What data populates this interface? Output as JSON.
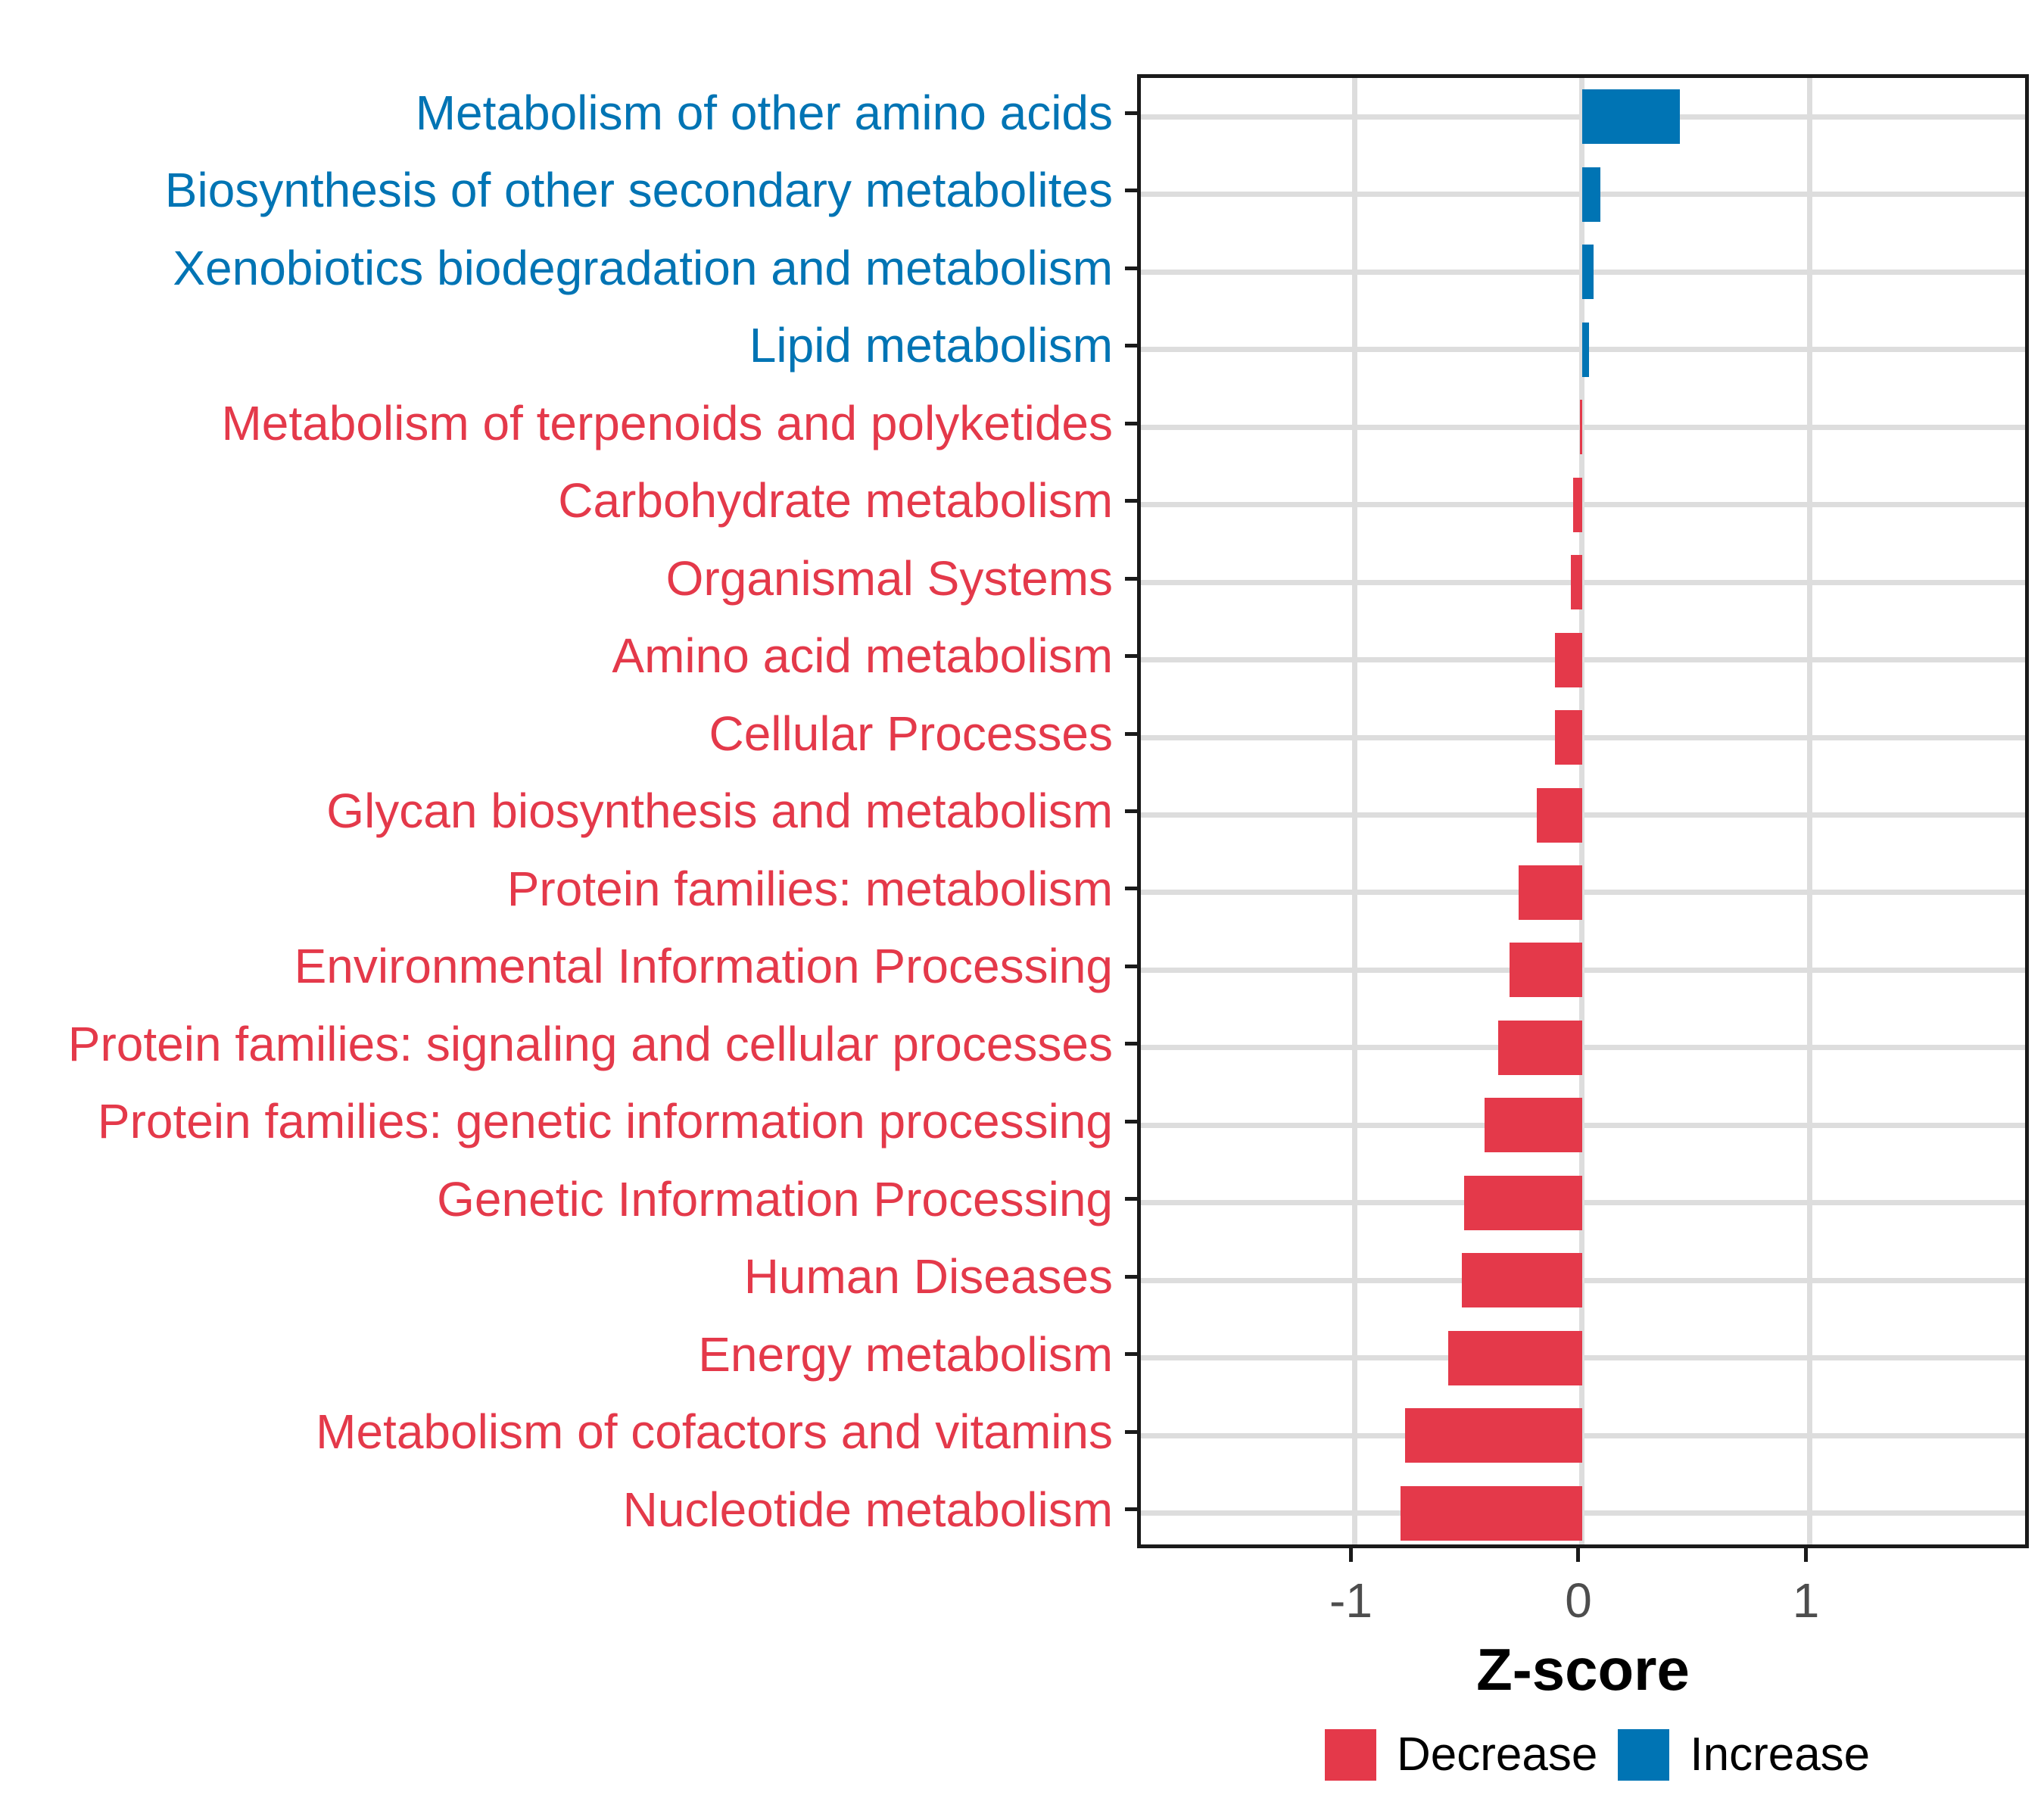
{
  "chart_data": {
    "type": "bar",
    "orientation": "horizontal",
    "xlabel": "Z-score",
    "xlim": [
      -1.94,
      1.98
    ],
    "x_ticks": [
      -1,
      0,
      1
    ],
    "grid": true,
    "legend_position": "bottom",
    "categories": [
      "Metabolism of other amino acids",
      "Biosynthesis of other secondary metabolites",
      "Xenobiotics biodegradation and metabolism",
      "Lipid metabolism",
      "Metabolism of terpenoids and polyketides",
      "Carbohydrate metabolism",
      "Organismal Systems",
      "Amino acid metabolism",
      "Cellular Processes",
      "Glycan biosynthesis and metabolism",
      "Protein families: metabolism",
      "Environmental Information Processing",
      "Protein families: signaling and cellular processes",
      "Protein families: genetic information processing",
      "Genetic Information Processing",
      "Human Diseases",
      "Energy metabolism",
      "Metabolism of cofactors and vitamins",
      "Nucleotide metabolism"
    ],
    "values": [
      0.43,
      0.08,
      0.05,
      0.03,
      -0.01,
      -0.04,
      -0.05,
      -0.12,
      -0.12,
      -0.2,
      -0.28,
      -0.32,
      -0.37,
      -0.43,
      -0.52,
      -0.53,
      -0.59,
      -0.78,
      -0.8
    ],
    "directions": [
      "increase",
      "increase",
      "increase",
      "increase",
      "decrease",
      "decrease",
      "decrease",
      "decrease",
      "decrease",
      "decrease",
      "decrease",
      "decrease",
      "decrease",
      "decrease",
      "decrease",
      "decrease",
      "decrease",
      "decrease",
      "decrease"
    ],
    "legend": [
      {
        "label": "Decrease",
        "key": "decrease",
        "color": "#E4394A"
      },
      {
        "label": "Increase",
        "key": "increase",
        "color": "#0074B4"
      }
    ]
  },
  "colors": {
    "decrease": "#E4394A",
    "increase": "#0074B4",
    "gridline": "#DDDDDD",
    "panel_border": "#1A1A1A",
    "tick_label": "#4D4D4D",
    "axis_title": "#000000",
    "background": "#FFFFFF"
  }
}
